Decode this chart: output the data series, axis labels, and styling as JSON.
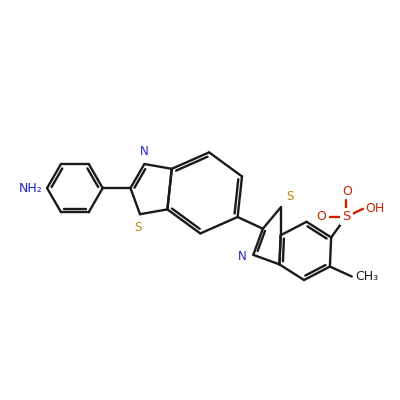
{
  "background_color": "#ffffff",
  "bond_color": "#1a1a1a",
  "N_color": "#2222cc",
  "S_color": "#b8860b",
  "O_color": "#cc2200",
  "figsize": [
    4.0,
    4.0
  ],
  "dpi": 100,
  "label_NH2": "NH₂",
  "label_N1": "N",
  "label_N2": "N",
  "label_S1": "S",
  "label_S2": "S",
  "label_O1": "O",
  "label_O2": "O",
  "label_OH": "OH",
  "label_S_sulfo": "S",
  "label_CH3": "CH₃"
}
